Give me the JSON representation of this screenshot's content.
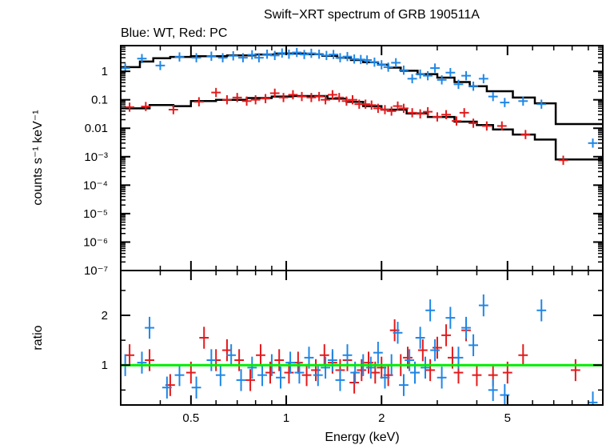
{
  "chart_data": {
    "type": "scatter",
    "title": "Swift−XRT spectrum of GRB 190511A",
    "subtitle": "Blue: WT, Red: PC",
    "xlabel": "Energy (keV)",
    "xscale": "log",
    "xlim": [
      0.3,
      10
    ],
    "x_ticks": [
      "0.5",
      "1",
      "2",
      "5"
    ],
    "colors": {
      "wt": "#1f87e6",
      "pc": "#e41a1c",
      "model": "#000000",
      "unity": "#00ee00"
    },
    "panels": {
      "spectrum": {
        "ylabel": "counts s⁻¹ keV⁻¹",
        "yscale": "log",
        "ylim": [
          1e-07,
          8
        ],
        "y_ticks": [
          "1",
          "0.1",
          "0.01",
          "10⁻³",
          "10⁻⁴",
          "10⁻⁵",
          "10⁻⁶",
          "10⁻⁷"
        ],
        "series": [
          {
            "key": "wt",
            "points": [
              [
                0.31,
                1.3
              ],
              [
                0.35,
                2.8
              ],
              [
                0.4,
                1.6
              ],
              [
                0.46,
                3.2
              ],
              [
                0.52,
                3.0
              ],
              [
                0.58,
                3.4
              ],
              [
                0.63,
                3.0
              ],
              [
                0.68,
                3.5
              ],
              [
                0.73,
                3.0
              ],
              [
                0.78,
                3.8
              ],
              [
                0.82,
                3.0
              ],
              [
                0.87,
                4.0
              ],
              [
                0.92,
                3.6
              ],
              [
                0.97,
                4.4
              ],
              [
                1.02,
                4.0
              ],
              [
                1.08,
                4.6
              ],
              [
                1.14,
                3.9
              ],
              [
                1.2,
                4.3
              ],
              [
                1.27,
                4.0
              ],
              [
                1.34,
                3.6
              ],
              [
                1.41,
                3.9
              ],
              [
                1.48,
                3.0
              ],
              [
                1.56,
                3.3
              ],
              [
                1.64,
                2.7
              ],
              [
                1.72,
                2.6
              ],
              [
                1.8,
                2.5
              ],
              [
                1.9,
                2.1
              ],
              [
                2.0,
                1.7
              ],
              [
                2.1,
                1.4
              ],
              [
                2.22,
                2.0
              ],
              [
                2.35,
                1.1
              ],
              [
                2.5,
                0.55
              ],
              [
                2.65,
                0.8
              ],
              [
                2.8,
                0.7
              ],
              [
                2.95,
                1.3
              ],
              [
                3.1,
                0.5
              ],
              [
                3.3,
                0.9
              ],
              [
                3.5,
                0.35
              ],
              [
                3.7,
                0.7
              ],
              [
                3.9,
                0.3
              ],
              [
                4.2,
                0.55
              ],
              [
                4.5,
                0.13
              ],
              [
                4.9,
                0.08
              ],
              [
                5.6,
                0.09
              ],
              [
                6.4,
                0.07
              ],
              [
                9.3,
                0.003
              ]
            ]
          },
          {
            "key": "pc",
            "points": [
              [
                0.32,
                0.055
              ],
              [
                0.36,
                0.058
              ],
              [
                0.44,
                0.045
              ],
              [
                0.53,
                0.085
              ],
              [
                0.6,
                0.18
              ],
              [
                0.65,
                0.1
              ],
              [
                0.7,
                0.12
              ],
              [
                0.75,
                0.09
              ],
              [
                0.8,
                0.1
              ],
              [
                0.86,
                0.11
              ],
              [
                0.92,
                0.17
              ],
              [
                0.98,
                0.12
              ],
              [
                1.05,
                0.15
              ],
              [
                1.12,
                0.13
              ],
              [
                1.2,
                0.12
              ],
              [
                1.27,
                0.13
              ],
              [
                1.33,
                0.1
              ],
              [
                1.4,
                0.15
              ],
              [
                1.47,
                0.12
              ],
              [
                1.55,
                0.09
              ],
              [
                1.62,
                0.1
              ],
              [
                1.7,
                0.07
              ],
              [
                1.78,
                0.07
              ],
              [
                1.86,
                0.065
              ],
              [
                1.95,
                0.05
              ],
              [
                2.05,
                0.045
              ],
              [
                2.15,
                0.04
              ],
              [
                2.25,
                0.06
              ],
              [
                2.35,
                0.05
              ],
              [
                2.5,
                0.035
              ],
              [
                2.65,
                0.032
              ],
              [
                2.8,
                0.038
              ],
              [
                3.0,
                0.025
              ],
              [
                3.2,
                0.03
              ],
              [
                3.45,
                0.018
              ],
              [
                3.65,
                0.035
              ],
              [
                3.9,
                0.015
              ],
              [
                4.3,
                0.012
              ],
              [
                4.8,
                0.012
              ],
              [
                5.7,
                0.006
              ],
              [
                7.5,
                0.00075
              ]
            ]
          }
        ],
        "model_wt": [
          [
            0.3,
            1.4
          ],
          [
            0.345,
            1.4
          ],
          [
            0.345,
            2.2
          ],
          [
            0.38,
            2.2
          ],
          [
            0.38,
            2.9
          ],
          [
            0.43,
            2.9
          ],
          [
            0.43,
            3.2
          ],
          [
            0.5,
            3.2
          ],
          [
            0.5,
            3.4
          ],
          [
            0.65,
            3.4
          ],
          [
            0.65,
            3.6
          ],
          [
            0.8,
            3.6
          ],
          [
            0.8,
            3.9
          ],
          [
            0.92,
            3.9
          ],
          [
            0.92,
            4.2
          ],
          [
            1.15,
            4.2
          ],
          [
            1.15,
            4.0
          ],
          [
            1.3,
            4.0
          ],
          [
            1.3,
            3.5
          ],
          [
            1.45,
            3.5
          ],
          [
            1.45,
            3.0
          ],
          [
            1.6,
            3.0
          ],
          [
            1.6,
            2.5
          ],
          [
            1.75,
            2.5
          ],
          [
            1.75,
            2.1
          ],
          [
            1.95,
            2.1
          ],
          [
            1.95,
            1.7
          ],
          [
            2.1,
            1.7
          ],
          [
            2.1,
            1.35
          ],
          [
            2.3,
            1.35
          ],
          [
            2.3,
            1.05
          ],
          [
            2.6,
            1.05
          ],
          [
            2.6,
            0.8
          ],
          [
            3.0,
            0.8
          ],
          [
            3.0,
            0.6
          ],
          [
            3.4,
            0.6
          ],
          [
            3.4,
            0.42
          ],
          [
            3.8,
            0.42
          ],
          [
            3.8,
            0.3
          ],
          [
            4.3,
            0.3
          ],
          [
            4.3,
            0.2
          ],
          [
            5.2,
            0.2
          ],
          [
            5.2,
            0.12
          ],
          [
            6.1,
            0.12
          ],
          [
            6.1,
            0.075
          ],
          [
            7.1,
            0.075
          ],
          [
            7.1,
            0.014
          ],
          [
            10,
            0.014
          ]
        ],
        "model_pc": [
          [
            0.3,
            0.05
          ],
          [
            0.37,
            0.05
          ],
          [
            0.37,
            0.065
          ],
          [
            0.44,
            0.065
          ],
          [
            0.44,
            0.06
          ],
          [
            0.5,
            0.06
          ],
          [
            0.5,
            0.09
          ],
          [
            0.6,
            0.09
          ],
          [
            0.6,
            0.1
          ],
          [
            0.75,
            0.1
          ],
          [
            0.75,
            0.115
          ],
          [
            0.9,
            0.115
          ],
          [
            0.9,
            0.13
          ],
          [
            1.05,
            0.13
          ],
          [
            1.05,
            0.135
          ],
          [
            1.35,
            0.135
          ],
          [
            1.35,
            0.11
          ],
          [
            1.55,
            0.11
          ],
          [
            1.55,
            0.085
          ],
          [
            1.75,
            0.085
          ],
          [
            1.75,
            0.06
          ],
          [
            2.0,
            0.06
          ],
          [
            2.0,
            0.045
          ],
          [
            2.4,
            0.045
          ],
          [
            2.4,
            0.033
          ],
          [
            2.8,
            0.033
          ],
          [
            2.8,
            0.025
          ],
          [
            3.4,
            0.025
          ],
          [
            3.4,
            0.017
          ],
          [
            4.0,
            0.017
          ],
          [
            4.0,
            0.013
          ],
          [
            4.5,
            0.013
          ],
          [
            4.5,
            0.009
          ],
          [
            5.2,
            0.009
          ],
          [
            5.2,
            0.006
          ],
          [
            6.1,
            0.006
          ],
          [
            6.1,
            0.004
          ],
          [
            7.1,
            0.004
          ],
          [
            7.1,
            0.0008
          ],
          [
            10,
            0.0008
          ]
        ]
      },
      "ratio": {
        "ylabel": "ratio",
        "yscale": "linear",
        "ylim": [
          0.2,
          2.9
        ],
        "y_ticks": [
          "1",
          "2"
        ],
        "unity": 1,
        "series": [
          {
            "key": "wt",
            "points": [
              [
                0.31,
                1.0
              ],
              [
                0.35,
                1.05
              ],
              [
                0.37,
                1.75
              ],
              [
                0.42,
                0.55
              ],
              [
                0.46,
                0.8
              ],
              [
                0.52,
                0.55
              ],
              [
                0.58,
                1.1
              ],
              [
                0.62,
                0.8
              ],
              [
                0.67,
                1.2
              ],
              [
                0.72,
                0.7
              ],
              [
                0.78,
                0.95
              ],
              [
                0.84,
                0.8
              ],
              [
                0.9,
                1.0
              ],
              [
                0.96,
                0.75
              ],
              [
                1.03,
                1.05
              ],
              [
                1.1,
                0.85
              ],
              [
                1.18,
                1.15
              ],
              [
                1.26,
                0.8
              ],
              [
                1.33,
                0.95
              ],
              [
                1.4,
                1.1
              ],
              [
                1.48,
                0.7
              ],
              [
                1.56,
                1.2
              ],
              [
                1.65,
                0.85
              ],
              [
                1.75,
                1.0
              ],
              [
                1.85,
                0.95
              ],
              [
                1.95,
                1.25
              ],
              [
                2.05,
                0.75
              ],
              [
                2.15,
                1.0
              ],
              [
                2.25,
                1.65
              ],
              [
                2.35,
                0.6
              ],
              [
                2.45,
                1.1
              ],
              [
                2.55,
                0.85
              ],
              [
                2.65,
                1.55
              ],
              [
                2.75,
                0.95
              ],
              [
                2.85,
                2.1
              ],
              [
                2.95,
                1.3
              ],
              [
                3.1,
                0.75
              ],
              [
                3.3,
                1.95
              ],
              [
                3.5,
                1.15
              ],
              [
                3.7,
                1.75
              ],
              [
                3.9,
                1.4
              ],
              [
                4.2,
                2.2
              ],
              [
                4.5,
                0.5
              ],
              [
                4.9,
                0.4
              ],
              [
                6.4,
                2.1
              ],
              [
                9.3,
                0.25
              ]
            ]
          },
          {
            "key": "pc",
            "points": [
              [
                0.32,
                1.2
              ],
              [
                0.37,
                1.1
              ],
              [
                0.43,
                0.6
              ],
              [
                0.5,
                0.85
              ],
              [
                0.55,
                1.55
              ],
              [
                0.6,
                1.1
              ],
              [
                0.65,
                1.3
              ],
              [
                0.71,
                1.1
              ],
              [
                0.77,
                0.7
              ],
              [
                0.83,
                1.2
              ],
              [
                0.89,
                0.85
              ],
              [
                0.95,
                1.1
              ],
              [
                1.02,
                0.85
              ],
              [
                1.09,
                1.05
              ],
              [
                1.16,
                0.8
              ],
              [
                1.24,
                0.9
              ],
              [
                1.32,
                1.2
              ],
              [
                1.4,
                1.05
              ],
              [
                1.48,
                0.9
              ],
              [
                1.56,
                1.1
              ],
              [
                1.64,
                0.65
              ],
              [
                1.73,
                0.9
              ],
              [
                1.82,
                1.05
              ],
              [
                1.91,
                0.85
              ],
              [
                2.0,
                0.95
              ],
              [
                2.1,
                0.8
              ],
              [
                2.2,
                1.7
              ],
              [
                2.3,
                1.0
              ],
              [
                2.42,
                1.15
              ],
              [
                2.55,
                0.85
              ],
              [
                2.7,
                1.3
              ],
              [
                2.85,
                0.9
              ],
              [
                3.0,
                1.35
              ],
              [
                3.2,
                1.6
              ],
              [
                3.35,
                1.15
              ],
              [
                3.5,
                0.85
              ],
              [
                3.7,
                1.7
              ],
              [
                4.0,
                0.8
              ],
              [
                4.5,
                0.8
              ],
              [
                5.0,
                0.85
              ],
              [
                5.6,
                1.2
              ],
              [
                8.2,
                0.9
              ]
            ]
          }
        ]
      }
    }
  }
}
